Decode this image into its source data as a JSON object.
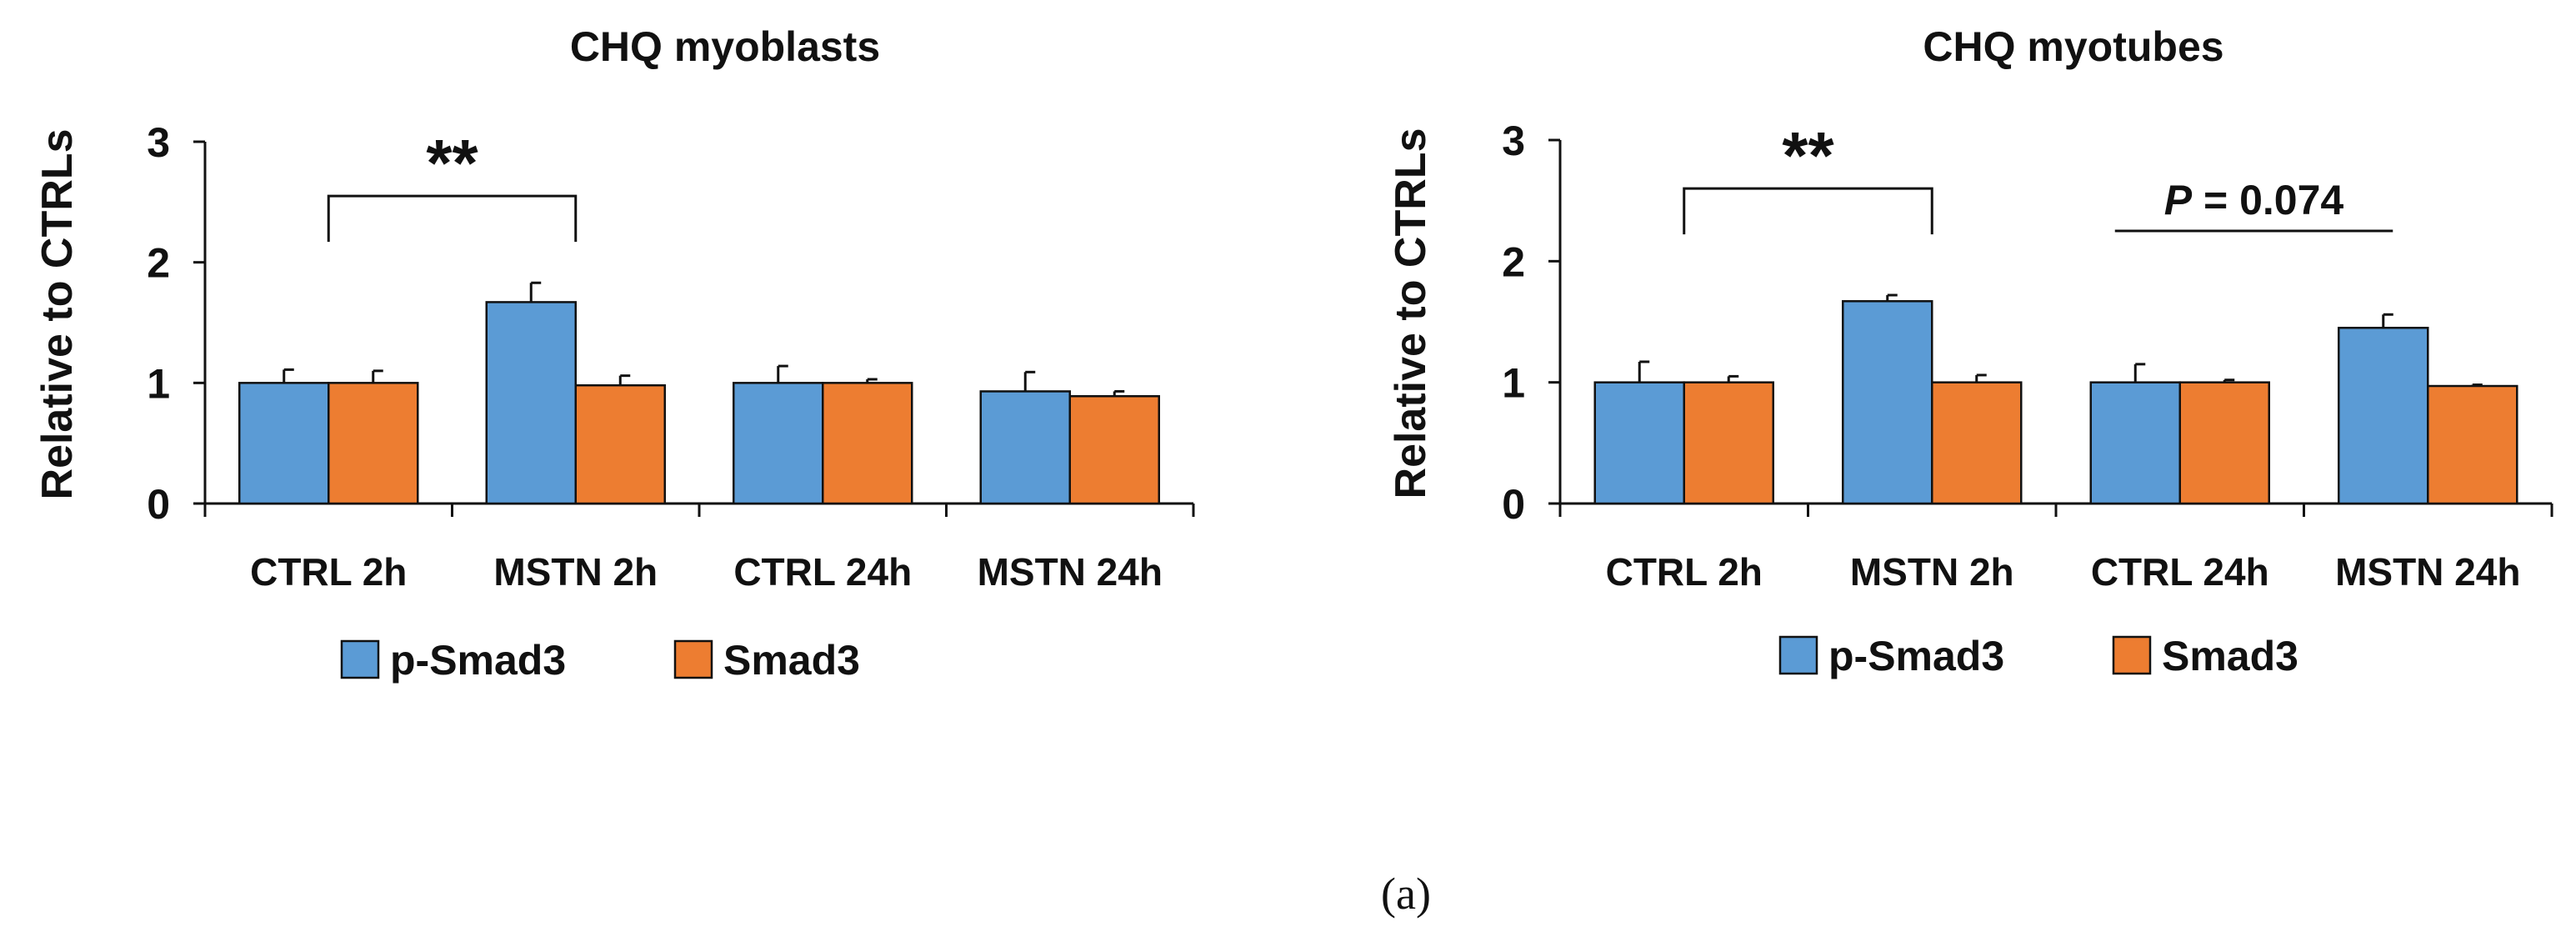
{
  "caption": "(a)",
  "chart_data": [
    {
      "type": "bar",
      "title": "CHQ myoblasts",
      "xlabel": "",
      "ylabel": "Relative to CTRLs",
      "ylim": [
        0,
        3
      ],
      "yticks": [
        0,
        1,
        2,
        3
      ],
      "categories": [
        "CTRL 2h",
        "MSTN 2h",
        "CTRL 24h",
        "MSTN 24h"
      ],
      "series": [
        {
          "name": "p-Smad3",
          "color": "#5b9bd5",
          "values": [
            1.0,
            1.67,
            1.0,
            0.93
          ],
          "errors": [
            0.11,
            0.16,
            0.14,
            0.16
          ]
        },
        {
          "name": "Smad3",
          "color": "#ed7d31",
          "values": [
            1.0,
            0.98,
            1.0,
            0.89
          ],
          "errors": [
            0.1,
            0.08,
            0.03,
            0.04
          ]
        }
      ],
      "annotations": [
        {
          "text": "**",
          "from_category": 0,
          "to_category": 1,
          "style": "bracket",
          "level": 2.55
        }
      ]
    },
    {
      "type": "bar",
      "title": "CHQ myotubes",
      "xlabel": "",
      "ylabel": "Relative to  CTRLs",
      "ylim": [
        0,
        3
      ],
      "yticks": [
        0,
        1,
        2,
        3
      ],
      "categories": [
        "CTRL 2h",
        "MSTN 2h",
        "CTRL 24h",
        "MSTN 24h"
      ],
      "series": [
        {
          "name": "p-Smad3",
          "color": "#5b9bd5",
          "values": [
            1.0,
            1.67,
            1.0,
            1.45
          ],
          "errors": [
            0.17,
            0.05,
            0.15,
            0.11
          ]
        },
        {
          "name": "Smad3",
          "color": "#ed7d31",
          "values": [
            1.0,
            1.0,
            1.0,
            0.97
          ],
          "errors": [
            0.05,
            0.06,
            0.02,
            0.01
          ]
        }
      ],
      "annotations": [
        {
          "text": "**",
          "from_category": 0,
          "to_category": 1,
          "style": "bracket",
          "level": 2.6
        },
        {
          "text_prefix": "P",
          "text_suffix": " = 0.074",
          "from_category": 2,
          "to_category": 3,
          "style": "line",
          "level": 2.25
        }
      ]
    }
  ]
}
